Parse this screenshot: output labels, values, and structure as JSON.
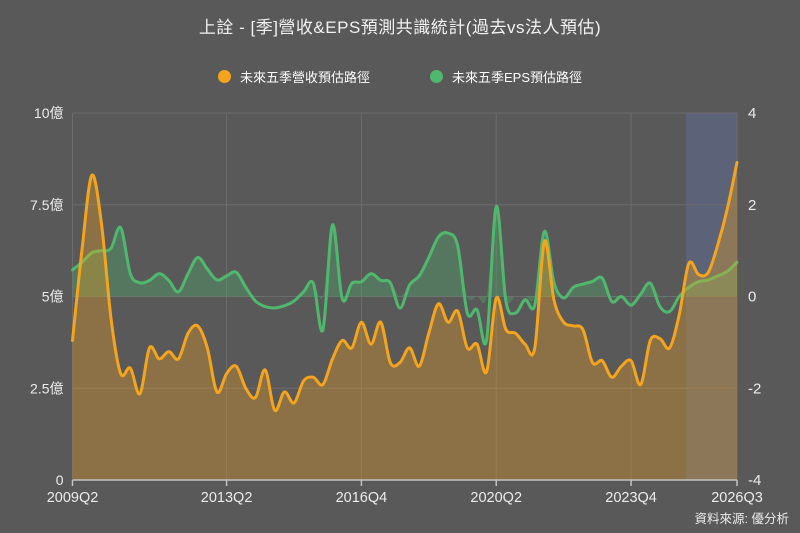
{
  "title": "上詮 - [季]營收&EPS預測共識統計(過去vs法人預估)",
  "source_note": "資料來源: 優分析",
  "colors": {
    "background": "#595959",
    "revenue": "#f5a41d",
    "revenue_fill": "rgba(245,164,29,0.32)",
    "eps": "#50b86e",
    "eps_fill": "rgba(80,184,110,0.32)",
    "forecast_band": "rgba(98,118,188,0.30)",
    "grid": "#6c6c6c",
    "axis": "#c2c2c2",
    "label_text": "#ececec"
  },
  "legend": {
    "items": [
      {
        "label": "未來五季營收預估路徑",
        "series": "revenue"
      },
      {
        "label": "未來五季EPS預估路徑",
        "series": "eps"
      }
    ]
  },
  "chart_data": {
    "type": "line",
    "title": "上詮 - [季]營收&EPS預測共識統計(過去vs法人預估)",
    "grid": true,
    "legend_position": "top",
    "x_categories": [
      "2009Q2",
      "2009Q3",
      "2009Q4",
      "2010Q1",
      "2010Q2",
      "2010Q3",
      "2010Q4",
      "2011Q1",
      "2011Q2",
      "2011Q3",
      "2011Q4",
      "2012Q1",
      "2012Q2",
      "2012Q3",
      "2012Q4",
      "2013Q1",
      "2013Q2",
      "2013Q3",
      "2013Q4",
      "2014Q1",
      "2014Q2",
      "2014Q3",
      "2014Q4",
      "2015Q1",
      "2015Q2",
      "2015Q3",
      "2015Q4",
      "2016Q1",
      "2016Q2",
      "2016Q3",
      "2016Q4",
      "2017Q1",
      "2017Q2",
      "2017Q3",
      "2017Q4",
      "2018Q1",
      "2018Q2",
      "2018Q3",
      "2018Q4",
      "2019Q1",
      "2019Q2",
      "2019Q3",
      "2019Q4",
      "2020Q1",
      "2020Q2",
      "2020Q3",
      "2020Q4",
      "2021Q1",
      "2021Q2",
      "2021Q3",
      "2021Q4",
      "2022Q1",
      "2022Q2",
      "2022Q3",
      "2022Q4",
      "2023Q1",
      "2023Q2",
      "2023Q3",
      "2023Q4",
      "2024Q1",
      "2024Q2",
      "2024Q3",
      "2024Q4",
      "2025Q1",
      "2025Q2",
      "2025Q3",
      "2025Q4",
      "2026Q1",
      "2026Q2",
      "2026Q3"
    ],
    "x_tick_labels": [
      "2009Q2",
      "2013Q2",
      "2016Q4",
      "2020Q2",
      "2023Q4",
      "2026Q3"
    ],
    "x_tick_indices": [
      0,
      16,
      30,
      44,
      58,
      69
    ],
    "left_axis": {
      "tick_labels": [
        "10億",
        "7.5億",
        "5億",
        "2.5億",
        "0"
      ],
      "tick_values": [
        10,
        7.5,
        5,
        2.5,
        0
      ],
      "min": 0,
      "max": 10,
      "unit": "億"
    },
    "right_axis": {
      "tick_labels": [
        "4",
        "2",
        "0",
        "-2",
        "-4"
      ],
      "tick_values": [
        4,
        2,
        0,
        -2,
        -4
      ],
      "min": -4,
      "max": 4
    },
    "forecast_band": {
      "start_index": 63.7,
      "end_index": 69
    },
    "series": [
      {
        "name": "未來五季營收預估路徑",
        "key": "revenue",
        "axis": "left",
        "unit": "億",
        "values": [
          3.8,
          6.3,
          8.3,
          7.0,
          4.4,
          2.9,
          3.05,
          2.35,
          3.6,
          3.3,
          3.5,
          3.3,
          4.0,
          4.2,
          3.6,
          2.4,
          2.9,
          3.1,
          2.5,
          2.25,
          3.0,
          1.9,
          2.4,
          2.1,
          2.7,
          2.8,
          2.6,
          3.3,
          3.8,
          3.6,
          4.3,
          3.7,
          4.3,
          3.2,
          3.2,
          3.6,
          3.1,
          4.0,
          4.8,
          4.3,
          4.6,
          3.6,
          3.7,
          2.95,
          4.95,
          4.1,
          4.0,
          3.7,
          3.6,
          6.5,
          4.9,
          4.3,
          4.2,
          4.1,
          3.2,
          3.25,
          2.8,
          3.1,
          3.25,
          2.6,
          3.8,
          3.85,
          3.6,
          4.5,
          5.9,
          5.6,
          5.65,
          6.4,
          7.4,
          8.65
        ]
      },
      {
        "name": "未來五季EPS預估路徑",
        "key": "eps",
        "axis": "right",
        "values": [
          0.58,
          0.75,
          0.95,
          1.0,
          1.05,
          1.5,
          0.5,
          0.3,
          0.35,
          0.5,
          0.35,
          0.1,
          0.5,
          0.85,
          0.6,
          0.36,
          0.45,
          0.53,
          0.2,
          -0.1,
          -0.22,
          -0.25,
          -0.2,
          -0.1,
          0.1,
          0.29,
          -0.73,
          1.56,
          -0.05,
          0.29,
          0.32,
          0.5,
          0.35,
          0.3,
          -0.25,
          0.25,
          0.45,
          0.85,
          1.3,
          1.38,
          1.1,
          -0.36,
          -0.29,
          -0.95,
          1.96,
          -0.1,
          -0.36,
          -0.07,
          -0.19,
          1.42,
          0.3,
          -0.03,
          0.2,
          0.27,
          0.33,
          0.4,
          -0.11,
          0.0,
          -0.19,
          0.05,
          0.29,
          -0.22,
          -0.33,
          0.0,
          0.2,
          0.32,
          0.36,
          0.45,
          0.55,
          0.75
        ]
      }
    ]
  }
}
